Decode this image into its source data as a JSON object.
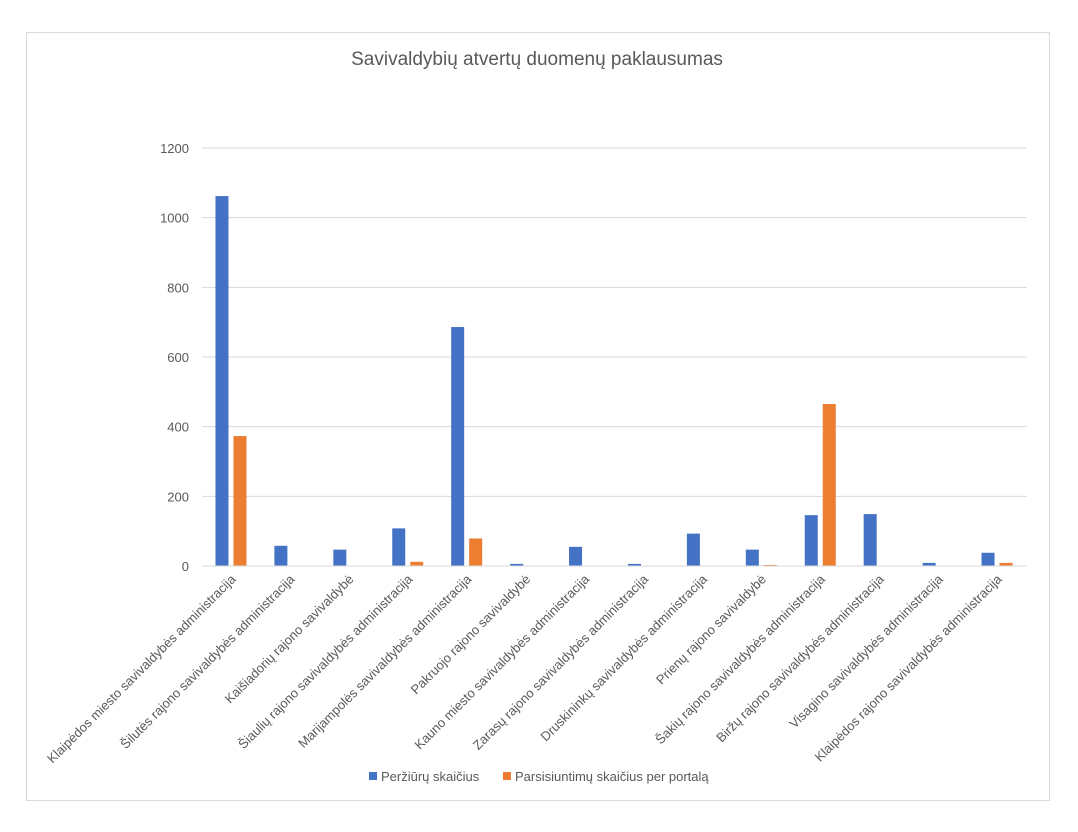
{
  "chart_data": {
    "type": "bar",
    "title": "Savivaldybių atvertų duomenų paklausumas",
    "xlabel": "",
    "ylabel": "",
    "ylim": [
      0,
      1200
    ],
    "yticks": [
      0,
      200,
      400,
      600,
      800,
      1000,
      1200
    ],
    "grid": true,
    "legend_position": "bottom",
    "categories": [
      "Klaipėdos miesto savivaldybės administracija",
      "Šilutės rajono savivaldybės administracija",
      "Kaišiadorių rajono savivaldybė",
      "Šiaulių rajono savivaldybės administracija",
      "Marijampolės savivaldybės administracija",
      "Pakruojo rajono savivaldybė",
      "Kauno miesto savivaldybės administracija",
      "Zarasų rajono savivaldybės administracija",
      "Druskininkų savivaldybės administracija",
      "Prienų rajono savivaldybė",
      "Šakių rajono savivaldybės administracija",
      "Biržų rajono savivaldybės administracija",
      "Visagino savivaldybės administracija",
      "Klaipėdos rajono savivaldybės administracija"
    ],
    "series": [
      {
        "name": "Peržiūrų skaičius",
        "color": "#4472c4",
        "values": [
          1062,
          58,
          47,
          108,
          686,
          6,
          55,
          6,
          93,
          47,
          146,
          149,
          9,
          38
        ]
      },
      {
        "name": "Parsisiuntimų skaičius per portalą",
        "color": "#ed7d31",
        "values": [
          373,
          0,
          0,
          12,
          79,
          0,
          0,
          0,
          0,
          3,
          465,
          0,
          0,
          9
        ]
      }
    ]
  }
}
